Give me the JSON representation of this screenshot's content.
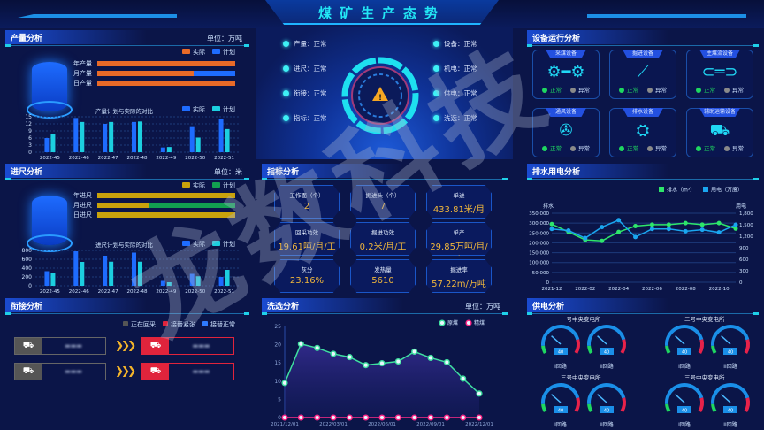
{
  "header": {
    "title": "煤矿生产态势"
  },
  "watermark": "龙数科技",
  "production": {
    "title": "产量分析",
    "unit": "单位：万吨",
    "legend": [
      "实际",
      "计划"
    ],
    "rows": [
      {
        "label": "年产量",
        "actual": 1.0
      },
      {
        "label": "月产量",
        "actual": 0.7
      },
      {
        "label": "日产量",
        "actual": 1.0
      }
    ],
    "chart_title": "产量计划与实际的对比",
    "chart_legend": [
      "实际",
      "计划"
    ]
  },
  "footage": {
    "title": "进尺分析",
    "unit": "单位：米",
    "legend": [
      "实际",
      "计划"
    ],
    "rows": [
      {
        "label": "年进尺",
        "actual": 1.0
      },
      {
        "label": "月进尺",
        "actual": 0.37
      },
      {
        "label": "日进尺",
        "actual": 1.0
      }
    ],
    "chart_title": "进尺计划与实际的对比",
    "chart_legend": [
      "实际",
      "计划"
    ]
  },
  "connection": {
    "title": "衔接分析",
    "legend": [
      "正在回采",
      "接替紧张",
      "接替正常"
    ],
    "legend_colors": [
      "#555555",
      "#e0243c",
      "#2f7bff"
    ]
  },
  "status": {
    "left": [
      "产量：正常",
      "进尺：正常",
      "衔接：正常",
      "指标：正常"
    ],
    "right": [
      "设备：正常",
      "机电：正常",
      "供电：正常",
      "洗选：正常"
    ]
  },
  "indicators": {
    "title": "指标分析",
    "items": [
      {
        "label": "工作面（个）",
        "value": "2"
      },
      {
        "label": "掘进头（个）",
        "value": "7"
      },
      {
        "label": "单进",
        "value": "433.81米/月"
      },
      {
        "label": "回采功效",
        "value": "19.61吨/月/工"
      },
      {
        "label": "掘进功效",
        "value": "0.2米/月/工"
      },
      {
        "label": "单产",
        "value": "29.85万吨/月/个"
      },
      {
        "label": "灰分",
        "value": "23.16%"
      },
      {
        "label": "发热量",
        "value": "5610"
      },
      {
        "label": "掘进率",
        "value": "57.22m/万吨"
      }
    ]
  },
  "washing": {
    "title": "洗选分析",
    "unit": "单位：万吨"
  },
  "equipment": {
    "title": "设备运行分析",
    "normal": "正常",
    "abnormal": "异常",
    "items": [
      {
        "name": "采煤设备",
        "icon": "shearer-icon"
      },
      {
        "name": "掘进设备",
        "icon": "roadheader-icon"
      },
      {
        "name": "主煤流设备",
        "icon": "conveyor-icon"
      },
      {
        "name": "通风设备",
        "icon": "fan-icon"
      },
      {
        "name": "排水设备",
        "icon": "pump-icon"
      },
      {
        "name": "辅助运输设备",
        "icon": "truck-icon"
      }
    ],
    "colors": {
      "normal": "#1ed760",
      "abnormal": "#8a8a8a"
    }
  },
  "drainage": {
    "title": "排水用电分析"
  },
  "power": {
    "title": "供电分析",
    "stations": [
      "一号中央变电所",
      "二号中央变电所",
      "三号中央变电所",
      "三号中央变电所"
    ],
    "circuits": [
      "I回路",
      "II回路"
    ],
    "gauge_value": "40",
    "gauge_level": 0.3
  },
  "chart_data": [
    {
      "type": "bar",
      "id": "production",
      "title": "产量计划与实际的对比",
      "categories": [
        "2022-45",
        "2022-46",
        "2022-47",
        "2022-48",
        "2022-49",
        "2022-50",
        "2022-51"
      ],
      "series": [
        {
          "name": "实际",
          "values": [
            6,
            14.5,
            12,
            12.8,
            2,
            11,
            14
          ],
          "color": "#1e6cff"
        },
        {
          "name": "计划",
          "values": [
            7.5,
            12.8,
            12.8,
            13,
            2.2,
            6.2,
            9.8
          ],
          "color": "#1ccfe0"
        }
      ],
      "ylim": [
        0,
        15
      ],
      "yticks": [
        0,
        3,
        6,
        9,
        12,
        15
      ]
    },
    {
      "type": "bar",
      "id": "footage",
      "title": "进尺计划与实际的对比",
      "categories": [
        "2022-45",
        "2022-46",
        "2022-47",
        "2022-48",
        "2022-49",
        "2022-50",
        "2022-51"
      ],
      "series": [
        {
          "name": "实际",
          "values": [
            330,
            780,
            680,
            750,
            110,
            270,
            200
          ],
          "color": "#1e6cff"
        },
        {
          "name": "计划",
          "values": [
            300,
            540,
            545,
            545,
            80,
            215,
            360
          ],
          "color": "#1ccfe0"
        }
      ],
      "ylim": [
        0,
        800
      ],
      "yticks": [
        0,
        200,
        400,
        600,
        800
      ]
    },
    {
      "type": "line",
      "id": "drainage",
      "x": [
        "2021-12",
        "2022-01",
        "2022-02",
        "2022-03",
        "2022-04",
        "2022-05",
        "2022-06",
        "2022-07",
        "2022-08",
        "2022-09",
        "2022-10",
        "2022-11"
      ],
      "xticks": [
        "2021-12",
        "2022-02",
        "2022-04",
        "2022-06",
        "2022-08",
        "2022-10"
      ],
      "ylabel": "排水",
      "y2label": "用电",
      "series": [
        {
          "name": "排水（m³）",
          "axis": "left",
          "values": [
            295000,
            255000,
            215000,
            210000,
            255000,
            285000,
            292000,
            292000,
            300000,
            292000,
            300000,
            272000
          ],
          "color": "#2ee66b"
        },
        {
          "name": "用电（万度）",
          "axis": "right",
          "values": [
            1390,
            1350,
            1150,
            1440,
            1620,
            1180,
            1390,
            1390,
            1330,
            1370,
            1300,
            1500
          ],
          "color": "#1aa6f0"
        }
      ],
      "ylim": [
        0,
        350000
      ],
      "yticks": [
        "0",
        "50,000",
        "100,000",
        "150,000",
        "200,000",
        "250,000",
        "300,000",
        "350,000"
      ],
      "y2lim": [
        0,
        1800
      ],
      "y2ticks": [
        "0",
        "300",
        "600",
        "900",
        "1,200",
        "1,500",
        "1,800"
      ],
      "legend": "top-right"
    },
    {
      "type": "area",
      "id": "washing",
      "x": [
        "2021/12/01",
        "2022/01/01",
        "2022/02/01",
        "2022/03/01",
        "2022/04/01",
        "2022/05/01",
        "2022/06/01",
        "2022/07/01",
        "2022/08/01",
        "2022/09/01",
        "2022/10/01",
        "2022/11/01",
        "2022/12/01"
      ],
      "xticks": [
        "2021/12/01",
        "2022/03/01",
        "2022/06/01",
        "2022/09/01",
        "2022/12/01"
      ],
      "series": [
        {
          "name": "原煤",
          "values": [
            9.5,
            20.2,
            19.1,
            17.5,
            16.6,
            14.4,
            14.9,
            15.4,
            18.1,
            16.4,
            15.2,
            10.7,
            6.6
          ],
          "color": "#3fe0a0"
        },
        {
          "name": "精煤",
          "values": [
            0,
            0,
            0,
            0,
            0,
            0,
            0,
            0,
            0,
            0,
            0,
            0,
            0
          ],
          "color": "#ff2a8a"
        }
      ],
      "ylim": [
        0,
        25
      ],
      "yticks": [
        0,
        5,
        10,
        15,
        20,
        25
      ],
      "legend": "top-right"
    }
  ]
}
